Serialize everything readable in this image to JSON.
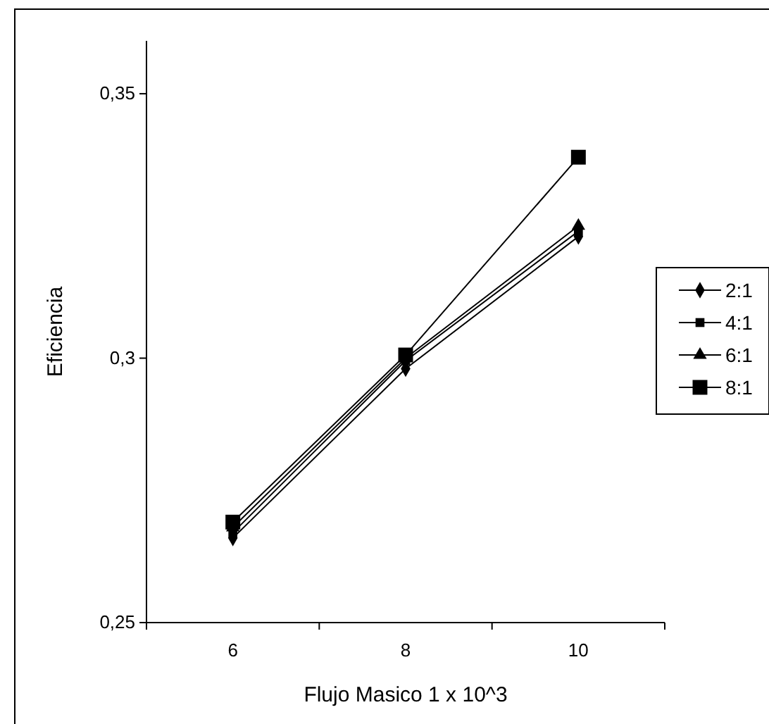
{
  "chart_data": {
    "type": "line",
    "xlabel": "Flujo Masico  1 x 10^3",
    "ylabel": "Eficiencia",
    "categories": [
      "6",
      "8",
      "10"
    ],
    "ylim": [
      0.25,
      0.36
    ],
    "yticks": [
      {
        "value": 0.25,
        "label": "0,25"
      },
      {
        "value": 0.3,
        "label": "0,3"
      },
      {
        "value": 0.35,
        "label": "0,35"
      }
    ],
    "grid": false,
    "legend": "right",
    "line_style": "solid",
    "series": [
      {
        "name": "2:1",
        "color": "#000000",
        "marker": "diamond",
        "values": [
          0.266,
          0.298,
          0.323
        ]
      },
      {
        "name": "4:1",
        "color": "#000000",
        "marker": "square",
        "values": [
          0.267,
          0.2995,
          0.324
        ]
      },
      {
        "name": "6:1",
        "color": "#000000",
        "marker": "triangle",
        "values": [
          0.268,
          0.3,
          0.325
        ]
      },
      {
        "name": "8:1",
        "color": "#000000",
        "marker": "square",
        "values": [
          0.269,
          0.3006,
          0.338
        ]
      }
    ]
  }
}
